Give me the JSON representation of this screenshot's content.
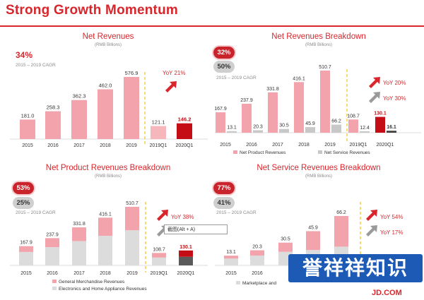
{
  "header": {
    "title": "Strong Growth Momentum"
  },
  "logo": "JD.COM",
  "watermark": "誉祥祥知识",
  "tooltip": "截图(Alt + A)",
  "chart_data": [
    {
      "type": "bar",
      "title": "Net Revenues",
      "subtitle": "(RMB Billions)",
      "badges": [
        {
          "text": "34%",
          "style": "plain"
        }
      ],
      "cagr_label": "2015 – 2019 CAGR",
      "categories": [
        "2015",
        "2016",
        "2017",
        "2018",
        "2019",
        "2019Q1",
        "2020Q1"
      ],
      "series": [
        {
          "values": [
            181.0,
            258.3,
            362.3,
            462.0,
            576.9,
            121.1,
            146.2
          ]
        }
      ],
      "value_labels": [
        "181.0",
        "258.3",
        "362.3",
        "462.0",
        "576.9",
        "121.1",
        "146.2"
      ],
      "yoy": [
        {
          "text": "YoY 21%",
          "color": "#d8262c"
        }
      ],
      "colors": {
        "annual": "#f3a3ab",
        "q1": "#f5b6bc",
        "highlight": "#c40d14"
      }
    },
    {
      "type": "bar",
      "title": "Net Revenues Breakdown",
      "subtitle": "(RMB Billions)",
      "badges": [
        {
          "text": "32%",
          "style": "red"
        },
        {
          "text": "50%",
          "style": "grey"
        }
      ],
      "cagr_label": "2015 – 2019 CAGR",
      "categories": [
        "2015",
        "2016",
        "2017",
        "2018",
        "2019",
        "2019Q1",
        "2020Q1"
      ],
      "series": [
        {
          "name": "Net Product Revenues",
          "values": [
            167.9,
            237.9,
            331.8,
            416.1,
            510.7,
            108.7,
            130.1
          ]
        },
        {
          "name": "Net Service Revenues",
          "values": [
            13.1,
            20.3,
            30.5,
            45.9,
            66.2,
            12.4,
            16.1
          ]
        }
      ],
      "value_labels": {
        "product": [
          "167.9",
          "237.9",
          "331.8",
          "416.1",
          "510.7",
          "108.7",
          "130.1"
        ],
        "service": [
          "13.1",
          "20.3",
          "30.5",
          "45.9",
          "66.2",
          "12.4",
          "16.1"
        ]
      },
      "yoy": [
        {
          "text": "YoY 20%",
          "color": "#d8262c"
        },
        {
          "text": "YoY 30%",
          "color": "#d8262c"
        }
      ],
      "colors": {
        "product": "#f3a3ab",
        "service": "#c8c8c8",
        "highlight": "#c40d14",
        "service_highlight": "#404040"
      }
    },
    {
      "type": "bar",
      "title": "Net Product Revenues Breakdown",
      "subtitle": "(RMB Billions)",
      "badges": [
        {
          "text": "53%",
          "style": "red"
        },
        {
          "text": "25%",
          "style": "grey"
        }
      ],
      "cagr_label": "2015 – 2019 CAGR",
      "categories": [
        "2015",
        "2016",
        "2017",
        "2018",
        "2019",
        "2019Q1",
        "2020Q1"
      ],
      "series": [
        {
          "name": "General Merchandise Revenues"
        },
        {
          "name": "Electronics and Home Appliance Revenues"
        }
      ],
      "totals": [
        167.9,
        237.9,
        331.8,
        416.1,
        510.7,
        108.7,
        130.1
      ],
      "value_labels": [
        "167.9",
        "237.9",
        "331.8",
        "416.1",
        "510.7",
        "108.7",
        "130.1"
      ],
      "general_share_estimate": [
        0.3,
        0.33,
        0.36,
        0.38,
        0.4,
        0.37,
        0.42
      ],
      "yoy": [
        {
          "text": "YoY 38%",
          "color": "#d8262c"
        },
        {
          "text": "YoY 10%",
          "color": "#d8262c"
        }
      ],
      "colors": {
        "general": "#f3a3ab",
        "electronics": "#dcdcdc",
        "highlight": "#c40d14",
        "electronics_highlight": "#5a5a5a"
      }
    },
    {
      "type": "bar",
      "title": "Net Service Revenues Breakdown",
      "subtitle": "(RMB Billions)",
      "badges": [
        {
          "text": "77%",
          "style": "red"
        },
        {
          "text": "41%",
          "style": "grey"
        }
      ],
      "cagr_label": "2015 – 2019 CAGR",
      "categories": [
        "2015",
        "2016",
        "",
        "",
        "",
        "",
        ""
      ],
      "totals": [
        13.1,
        20.3,
        30.5,
        45.9,
        66.2,
        null,
        null
      ],
      "value_labels": [
        "13.1",
        "20.3",
        "30.5",
        "45.9",
        "66.2",
        "",
        ""
      ],
      "legend": [
        "Marketplace and"
      ],
      "yoy": [
        {
          "text": "YoY 54%",
          "color": "#d8262c"
        },
        {
          "text": "YoY 17%",
          "color": "#d8262c"
        }
      ],
      "colors": {
        "pink": "#f3a3ab",
        "grey": "#dcdcdc"
      }
    }
  ]
}
